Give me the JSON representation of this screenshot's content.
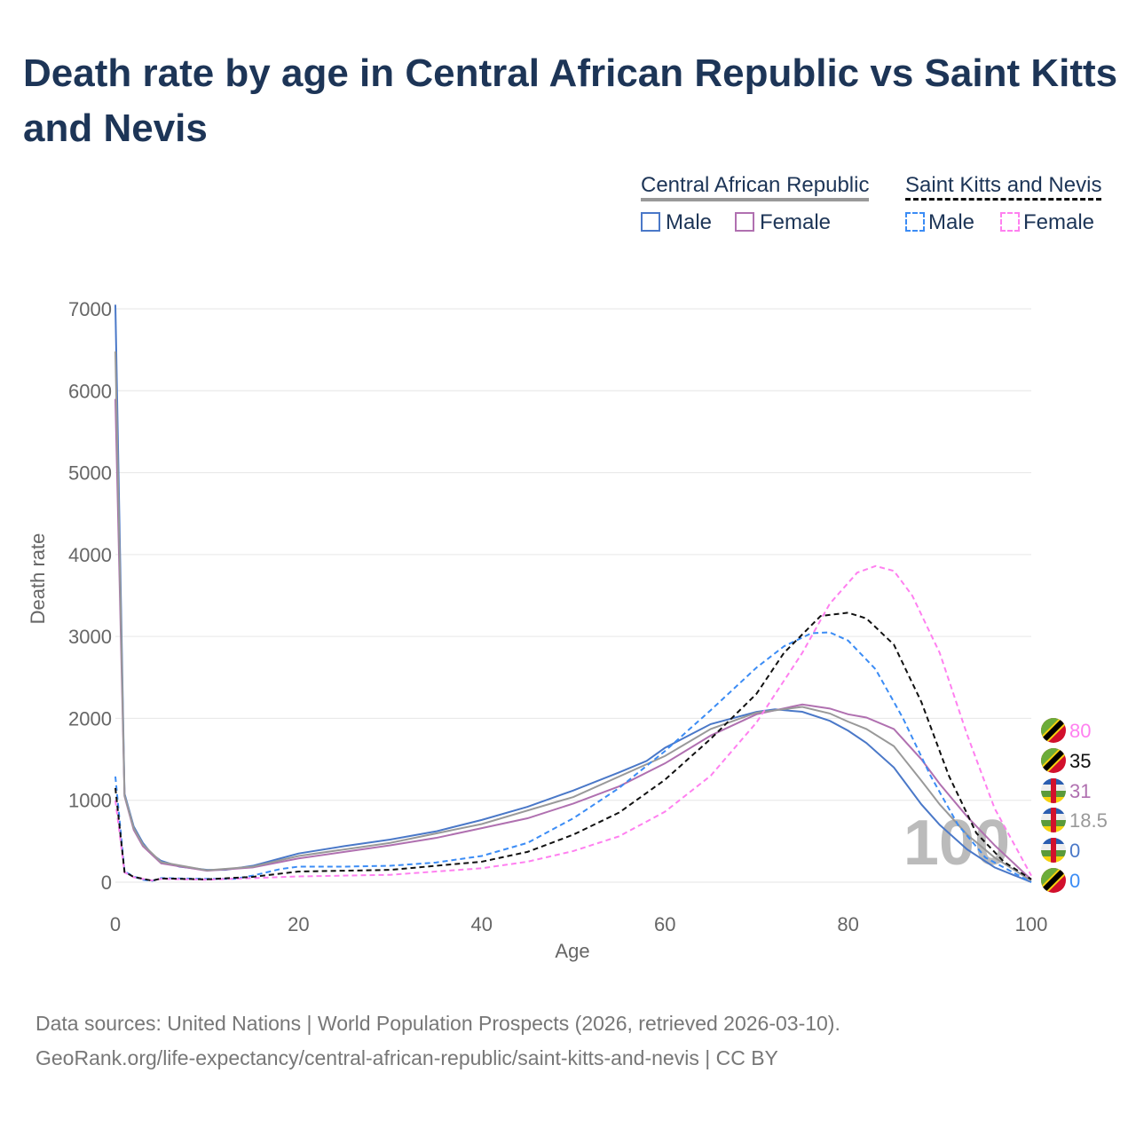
{
  "title": "Death rate by age in Central African Republic vs Saint Kitts and Nevis",
  "legend": {
    "group1": "Central African Republic",
    "group2": "Saint Kitts and Nevis",
    "male": "Male",
    "female": "Female"
  },
  "source_line1": "Data sources: United Nations | World Population Prospects (2026, retrieved 2026-03-10).",
  "source_line2": "GeoRank.org/life-expectancy/central-african-republic/saint-kitts-and-nevis | CC BY",
  "hover_age": "100",
  "chart_data": {
    "type": "line",
    "xlabel": "Age",
    "ylabel": "Death rate",
    "xlim": [
      0,
      100
    ],
    "ylim": [
      0,
      7000
    ],
    "xticks": [
      "0",
      "20",
      "40",
      "60",
      "80",
      "100"
    ],
    "yticks": [
      "0",
      "1000",
      "2000",
      "3000",
      "4000",
      "5000",
      "6000",
      "7000"
    ],
    "series": [
      {
        "name": "Central African Republic Male",
        "color": "#4a78c8",
        "dash": false,
        "end_label": "0",
        "points": [
          [
            0,
            7050
          ],
          [
            1,
            1080
          ],
          [
            2,
            680
          ],
          [
            3,
            480
          ],
          [
            4,
            340
          ],
          [
            5,
            260
          ],
          [
            7,
            190
          ],
          [
            10,
            150
          ],
          [
            12,
            150
          ],
          [
            15,
            200
          ],
          [
            18,
            290
          ],
          [
            20,
            350
          ],
          [
            25,
            440
          ],
          [
            30,
            520
          ],
          [
            35,
            620
          ],
          [
            40,
            760
          ],
          [
            45,
            920
          ],
          [
            50,
            1120
          ],
          [
            55,
            1340
          ],
          [
            58,
            1480
          ],
          [
            60,
            1640
          ],
          [
            65,
            1930
          ],
          [
            70,
            2080
          ],
          [
            72,
            2110
          ],
          [
            75,
            2080
          ],
          [
            78,
            1970
          ],
          [
            80,
            1850
          ],
          [
            82,
            1700
          ],
          [
            85,
            1400
          ],
          [
            88,
            950
          ],
          [
            90,
            700
          ],
          [
            93,
            400
          ],
          [
            96,
            180
          ],
          [
            100,
            0
          ]
        ]
      },
      {
        "name": "Central African Republic Female",
        "color": "#b070b0",
        "dash": false,
        "end_label": "31",
        "points": [
          [
            0,
            5900
          ],
          [
            1,
            1050
          ],
          [
            2,
            640
          ],
          [
            3,
            440
          ],
          [
            5,
            230
          ],
          [
            10,
            140
          ],
          [
            15,
            180
          ],
          [
            20,
            290
          ],
          [
            25,
            370
          ],
          [
            30,
            450
          ],
          [
            35,
            540
          ],
          [
            40,
            660
          ],
          [
            45,
            780
          ],
          [
            50,
            960
          ],
          [
            55,
            1170
          ],
          [
            60,
            1450
          ],
          [
            65,
            1790
          ],
          [
            70,
            2050
          ],
          [
            75,
            2170
          ],
          [
            78,
            2120
          ],
          [
            80,
            2050
          ],
          [
            82,
            2010
          ],
          [
            85,
            1870
          ],
          [
            88,
            1500
          ],
          [
            90,
            1200
          ],
          [
            93,
            800
          ],
          [
            96,
            450
          ],
          [
            100,
            31
          ]
        ]
      },
      {
        "name": "Central African Republic",
        "color": "#999999",
        "dash": false,
        "end_label": "18.5",
        "points": [
          [
            0,
            6480
          ],
          [
            1,
            1060
          ],
          [
            2,
            660
          ],
          [
            3,
            460
          ],
          [
            5,
            245
          ],
          [
            10,
            145
          ],
          [
            15,
            190
          ],
          [
            20,
            320
          ],
          [
            30,
            480
          ],
          [
            40,
            710
          ],
          [
            50,
            1040
          ],
          [
            60,
            1540
          ],
          [
            65,
            1870
          ],
          [
            70,
            2070
          ],
          [
            75,
            2140
          ],
          [
            78,
            2060
          ],
          [
            80,
            1960
          ],
          [
            82,
            1870
          ],
          [
            85,
            1660
          ],
          [
            88,
            1240
          ],
          [
            90,
            950
          ],
          [
            93,
            580
          ],
          [
            96,
            300
          ],
          [
            100,
            18.5
          ]
        ]
      },
      {
        "name": "Saint Kitts and Nevis Male",
        "color": "#3b8cf5",
        "dash": true,
        "end_label": "0",
        "points": [
          [
            0,
            1290
          ],
          [
            1,
            130
          ],
          [
            2,
            70
          ],
          [
            3,
            30
          ],
          [
            4,
            15
          ],
          [
            5,
            50
          ],
          [
            10,
            40
          ],
          [
            13,
            40
          ],
          [
            15,
            80
          ],
          [
            18,
            160
          ],
          [
            20,
            190
          ],
          [
            25,
            190
          ],
          [
            30,
            200
          ],
          [
            35,
            240
          ],
          [
            40,
            320
          ],
          [
            45,
            480
          ],
          [
            50,
            780
          ],
          [
            55,
            1150
          ],
          [
            60,
            1600
          ],
          [
            65,
            2100
          ],
          [
            70,
            2620
          ],
          [
            73,
            2880
          ],
          [
            76,
            3040
          ],
          [
            78,
            3050
          ],
          [
            80,
            2950
          ],
          [
            83,
            2600
          ],
          [
            86,
            2000
          ],
          [
            89,
            1300
          ],
          [
            92,
            700
          ],
          [
            95,
            300
          ],
          [
            100,
            0
          ]
        ]
      },
      {
        "name": "Saint Kitts and Nevis Female",
        "color": "#ff80f0",
        "dash": true,
        "end_label": "80",
        "points": [
          [
            0,
            1000
          ],
          [
            1,
            120
          ],
          [
            2,
            60
          ],
          [
            4,
            20
          ],
          [
            5,
            40
          ],
          [
            10,
            30
          ],
          [
            15,
            50
          ],
          [
            20,
            70
          ],
          [
            30,
            90
          ],
          [
            40,
            170
          ],
          [
            45,
            250
          ],
          [
            50,
            380
          ],
          [
            55,
            560
          ],
          [
            60,
            860
          ],
          [
            65,
            1300
          ],
          [
            70,
            1950
          ],
          [
            75,
            2800
          ],
          [
            78,
            3400
          ],
          [
            81,
            3780
          ],
          [
            83,
            3860
          ],
          [
            85,
            3800
          ],
          [
            87,
            3500
          ],
          [
            90,
            2800
          ],
          [
            93,
            1800
          ],
          [
            96,
            900
          ],
          [
            100,
            80
          ]
        ]
      },
      {
        "name": "Saint Kitts and Nevis",
        "color": "#111111",
        "dash": true,
        "end_label": "35",
        "points": [
          [
            0,
            1150
          ],
          [
            1,
            125
          ],
          [
            2,
            65
          ],
          [
            4,
            18
          ],
          [
            5,
            45
          ],
          [
            10,
            35
          ],
          [
            15,
            65
          ],
          [
            20,
            130
          ],
          [
            30,
            150
          ],
          [
            40,
            250
          ],
          [
            45,
            370
          ],
          [
            50,
            580
          ],
          [
            55,
            850
          ],
          [
            60,
            1250
          ],
          [
            65,
            1750
          ],
          [
            70,
            2300
          ],
          [
            73,
            2800
          ],
          [
            77,
            3250
          ],
          [
            80,
            3290
          ],
          [
            82,
            3220
          ],
          [
            85,
            2900
          ],
          [
            88,
            2200
          ],
          [
            91,
            1300
          ],
          [
            94,
            600
          ],
          [
            97,
            250
          ],
          [
            100,
            35
          ]
        ]
      }
    ]
  }
}
